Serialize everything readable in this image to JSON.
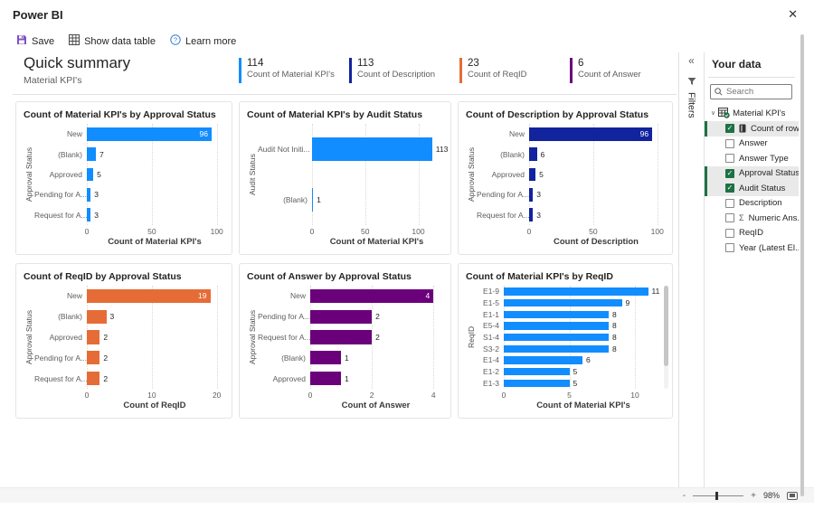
{
  "window": {
    "title": "Power BI",
    "close_icon": "✕"
  },
  "toolbar": {
    "save": "Save",
    "show_data_table": "Show data table",
    "learn_more": "Learn more"
  },
  "header": {
    "title": "Quick summary",
    "subtitle": "Material KPI's",
    "kpis": [
      {
        "value": "114",
        "label": "Count of Material KPI's",
        "color": "#118DFF"
      },
      {
        "value": "113",
        "label": "Count of Description",
        "color": "#12239E"
      },
      {
        "value": "23",
        "label": "Count of ReqID",
        "color": "#E66C37"
      },
      {
        "value": "6",
        "label": "Count of Answer",
        "color": "#6B007B"
      }
    ]
  },
  "sidebar": {
    "collapse_icon": "«",
    "filters_label": "Filters",
    "title": "Your data",
    "search_placeholder": "Search",
    "table_name": "Material KPI's",
    "fields": [
      {
        "label": "Count of rows",
        "checked": true,
        "icon": "rows"
      },
      {
        "label": "Answer",
        "checked": false,
        "icon": null
      },
      {
        "label": "Answer Type",
        "checked": false,
        "icon": null
      },
      {
        "label": "Approval Status",
        "checked": true,
        "icon": null
      },
      {
        "label": "Audit Status",
        "checked": true,
        "icon": null
      },
      {
        "label": "Description",
        "checked": false,
        "icon": null
      },
      {
        "label": "Numeric Ans...",
        "checked": false,
        "icon": "sigma"
      },
      {
        "label": "ReqID",
        "checked": false,
        "icon": null
      },
      {
        "label": "Year (Latest El...",
        "checked": false,
        "icon": null
      }
    ]
  },
  "statusbar": {
    "zoom_out": "-",
    "zoom_in": "+",
    "zoom_level": "98%"
  },
  "chart_data": [
    {
      "type": "bar",
      "orientation": "horizontal",
      "title": "Count of Material KPI's by Approval Status",
      "categories": [
        "New",
        "(Blank)",
        "Approved",
        "Pending for A...",
        "Request for A..."
      ],
      "values": [
        96,
        7,
        5,
        3,
        3
      ],
      "xlabel": "Count of Material KPI's",
      "ylabel": "Approval Status",
      "ticks": [
        0,
        50,
        100
      ],
      "xlim": [
        0,
        103
      ],
      "color": "#118DFF",
      "label_inside": [
        0
      ],
      "grid": "dotted-vertical",
      "label_width": 58
    },
    {
      "type": "bar",
      "orientation": "horizontal",
      "title": "Count of Material KPI's by Audit Status",
      "categories": [
        "Audit Not Initi...",
        "(Blank)"
      ],
      "values": [
        113,
        1
      ],
      "xlabel": "Count of Material KPI's",
      "ylabel": "Audit Status",
      "ticks": [
        0,
        50,
        100
      ],
      "xlim": [
        0,
        120
      ],
      "color": "#118DFF",
      "label_inside": [],
      "grid": "dotted-vertical",
      "label_width": 60
    },
    {
      "type": "bar",
      "orientation": "horizontal",
      "title": "Count of Description by Approval Status",
      "categories": [
        "New",
        "(Blank)",
        "Approved",
        "Pending for A...",
        "Request for A..."
      ],
      "values": [
        96,
        6,
        5,
        3,
        3
      ],
      "xlabel": "Count of Description",
      "ylabel": "Approval Status",
      "ticks": [
        0,
        50,
        100
      ],
      "xlim": [
        0,
        103
      ],
      "color": "#12239E",
      "label_inside": [
        0
      ],
      "grid": "dotted-vertical",
      "label_width": 58
    },
    {
      "type": "bar",
      "orientation": "horizontal",
      "title": "Count of ReqID by Approval Status",
      "categories": [
        "New",
        "(Blank)",
        "Approved",
        "Pending for A...",
        "Request for A..."
      ],
      "values": [
        19,
        3,
        2,
        2,
        2
      ],
      "xlabel": "Count of ReqID",
      "ylabel": "Approval Status",
      "ticks": [
        0,
        10,
        20
      ],
      "xlim": [
        0,
        20.6
      ],
      "color": "#E66C37",
      "label_inside": [
        0
      ],
      "grid": "dotted-vertical",
      "label_width": 58
    },
    {
      "type": "bar",
      "orientation": "horizontal",
      "title": "Count of Answer by Approval Status",
      "categories": [
        "New",
        "Pending for A...",
        "Request for A...",
        "(Blank)",
        "Approved"
      ],
      "values": [
        4,
        2,
        2,
        1,
        1
      ],
      "xlabel": "Count of Answer",
      "ylabel": "Approval Status",
      "ticks": [
        0,
        2,
        4
      ],
      "xlim": [
        0,
        4.2
      ],
      "color": "#6B007B",
      "label_inside": [
        0
      ],
      "grid": "dotted-vertical",
      "label_width": 58
    },
    {
      "type": "bar",
      "orientation": "horizontal",
      "title": "Count of Material KPI's by ReqID",
      "categories": [
        "E1-9",
        "E1-5",
        "E1-1",
        "E5-4",
        "S1-4",
        "S3-2",
        "E1-4",
        "E1-2",
        "E1-3"
      ],
      "values": [
        11,
        9,
        8,
        8,
        8,
        8,
        6,
        5,
        5
      ],
      "xlabel": "Count of Material KPI's",
      "ylabel": "ReqID",
      "ticks": [
        0,
        5,
        10
      ],
      "xlim": [
        0,
        12
      ],
      "color": "#118DFF",
      "label_inside": [],
      "grid": "dotted-vertical",
      "label_width": 30,
      "scrollbar": true
    }
  ]
}
